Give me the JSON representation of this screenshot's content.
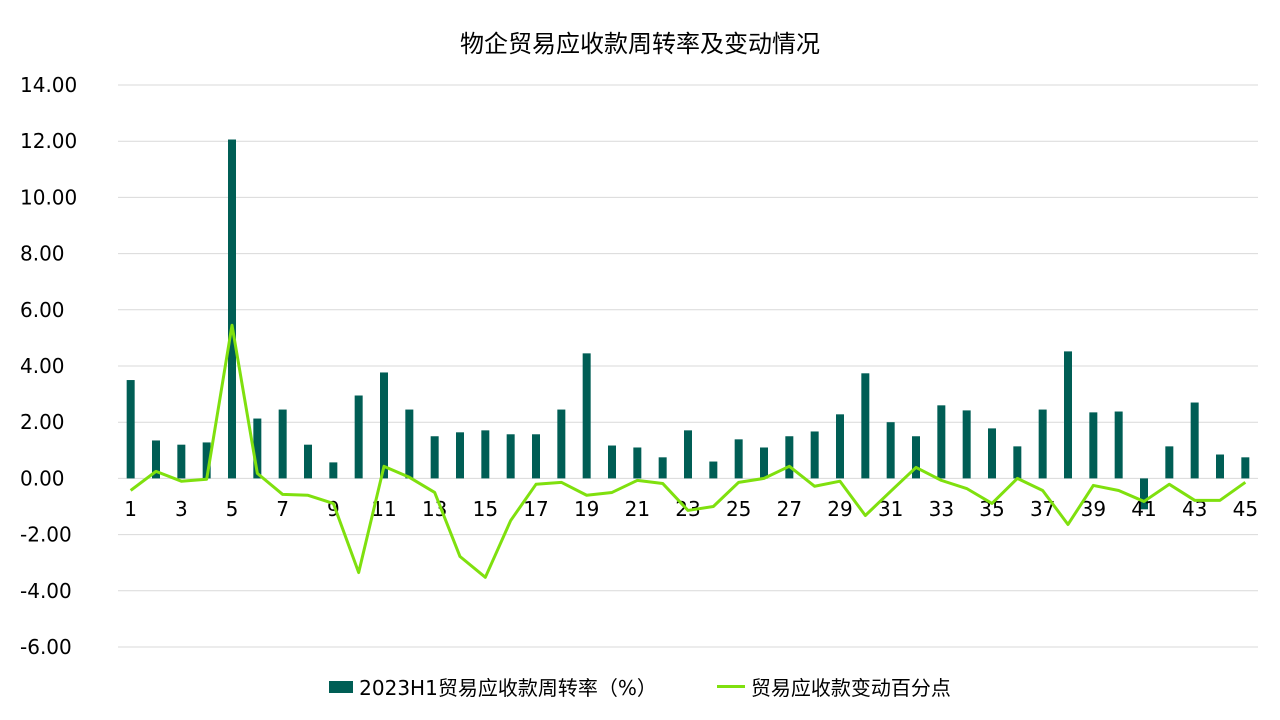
{
  "chart_data": {
    "type": "bar+line",
    "title": "物企贸易应收款周转率及变动情况",
    "xlabel": "",
    "ylabel": "",
    "ylim": [
      -6,
      14
    ],
    "yticks": [
      "14.00",
      "12.00",
      "10.00",
      "8.00",
      "6.00",
      "4.00",
      "2.00",
      "0.00",
      "-2.00",
      "-4.00",
      "-6.00"
    ],
    "ytick_values": [
      14,
      12,
      10,
      8,
      6,
      4,
      2,
      0,
      -2,
      -4,
      -6
    ],
    "grid": true,
    "legend_position": "bottom",
    "categories": [
      "1",
      "2",
      "3",
      "4",
      "5",
      "6",
      "7",
      "8",
      "9",
      "10",
      "11",
      "12",
      "13",
      "14",
      "15",
      "16",
      "17",
      "18",
      "19",
      "20",
      "21",
      "22",
      "23",
      "24",
      "25",
      "26",
      "27",
      "28",
      "29",
      "30",
      "31",
      "32",
      "33",
      "34",
      "35",
      "36",
      "37",
      "38",
      "39",
      "40",
      "41",
      "42",
      "43",
      "44",
      "45"
    ],
    "series": [
      {
        "name": "2023H1贸易应收款周转率（%）",
        "type": "bar",
        "color": "#005E55",
        "values": [
          3.5,
          1.35,
          1.2,
          1.28,
          12.06,
          2.13,
          2.45,
          1.2,
          0.57,
          2.95,
          3.77,
          2.45,
          1.5,
          1.64,
          1.71,
          1.57,
          1.57,
          2.45,
          4.45,
          1.17,
          1.1,
          0.75,
          1.71,
          0.6,
          1.39,
          1.1,
          1.5,
          1.67,
          2.28,
          3.74,
          2.0,
          1.5,
          2.6,
          2.42,
          1.78,
          1.14,
          2.45,
          4.52,
          2.35,
          2.38,
          -1.1,
          1.14,
          2.7,
          0.85,
          0.75
        ]
      },
      {
        "name": "贸易应收款变动百分点",
        "type": "line",
        "color": "#7FE00E",
        "values": [
          -0.43,
          0.25,
          -0.1,
          -0.03,
          5.45,
          0.18,
          -0.57,
          -0.6,
          -0.89,
          -3.35,
          0.43,
          0.04,
          -0.5,
          -2.78,
          -3.52,
          -1.5,
          -0.21,
          -0.14,
          -0.6,
          -0.5,
          -0.07,
          -0.18,
          -1.14,
          -1.0,
          -0.14,
          0.0,
          0.43,
          -0.28,
          -0.1,
          -1.32,
          -0.46,
          0.39,
          -0.07,
          -0.36,
          -0.89,
          0.0,
          -0.43,
          -1.64,
          -0.25,
          -0.43,
          -0.82,
          -0.21,
          -0.78,
          -0.78,
          -0.14
        ]
      }
    ]
  }
}
